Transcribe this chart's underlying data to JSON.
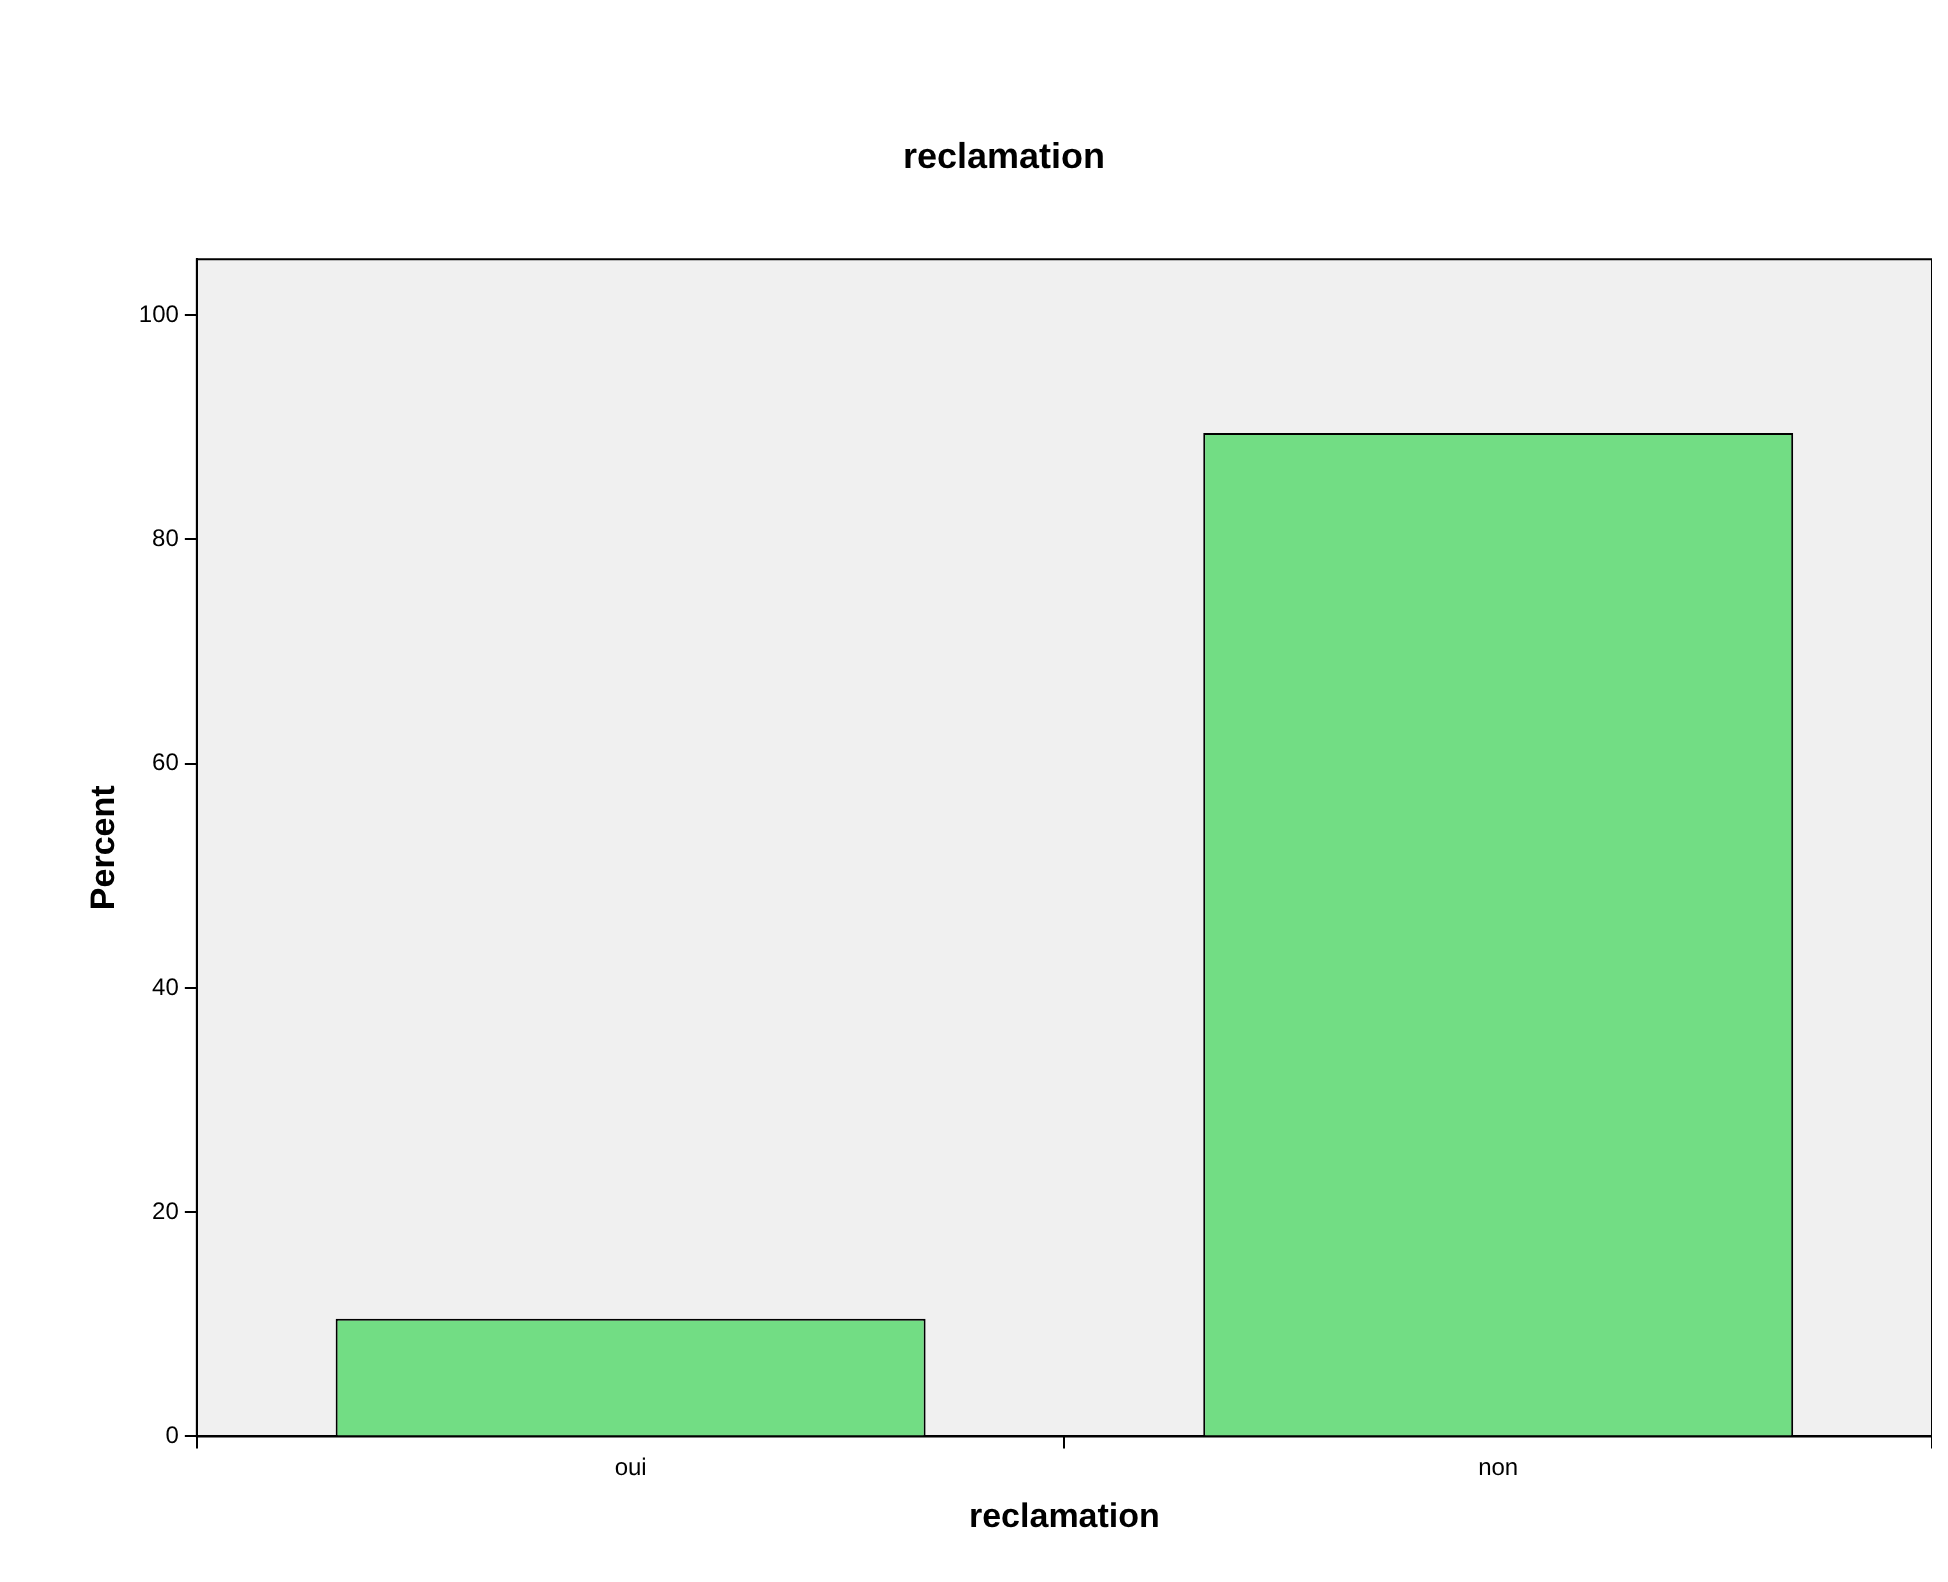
{
  "chart_data": {
    "type": "bar",
    "title": "reclamation",
    "xlabel": "reclamation",
    "ylabel": "Percent",
    "categories": [
      "oui",
      "non"
    ],
    "values": [
      10.5,
      89.5
    ],
    "color": "#72dd84",
    "ylim": [
      0,
      105
    ],
    "yticks": [
      0,
      20,
      40,
      60,
      80,
      100
    ],
    "grid": false,
    "legend": false
  }
}
